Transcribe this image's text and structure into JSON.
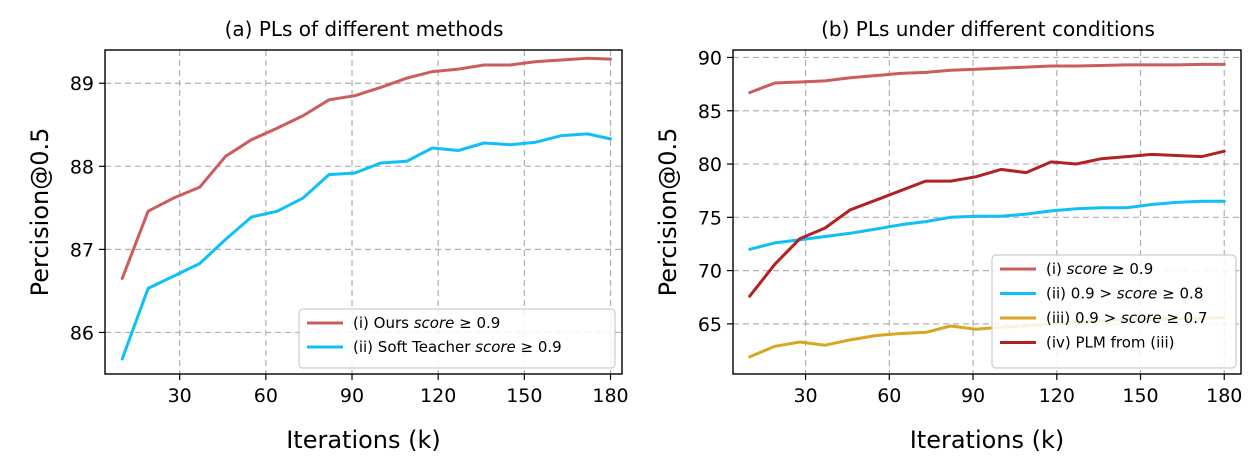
{
  "colors": {
    "ours": "#cd5c5c",
    "soft_teacher": "#0ebff8",
    "score09": "#cd5c5c",
    "score0908": "#0ebff8",
    "score0907": "#daa520",
    "plm": "#b22222"
  },
  "chart_data": [
    {
      "type": "line",
      "title": "(a) PLs of different methods",
      "xlabel": "Iterations (k)",
      "ylabel": "Percision@0.5",
      "xlim": [
        4,
        184
      ],
      "ylim": [
        85.5,
        89.4
      ],
      "xticks": [
        30,
        60,
        90,
        120,
        150,
        180
      ],
      "yticks": [
        86,
        87,
        88,
        89
      ],
      "grid": true,
      "legend_position": "lower-right",
      "x": [
        10,
        19,
        28,
        37,
        46,
        55,
        64,
        73,
        82,
        91,
        100,
        109,
        118,
        127,
        136,
        145,
        154,
        163,
        172,
        180
      ],
      "series": [
        {
          "name": "(i) Ours score ≥ 0.9",
          "legend_prefix": "(i) Ours",
          "legend_italic": "score",
          "legend_suffix": "≥ 0.9",
          "color_key": "ours",
          "values": [
            86.65,
            87.46,
            87.62,
            87.75,
            88.12,
            88.32,
            88.46,
            88.61,
            88.8,
            88.85,
            88.95,
            89.06,
            89.14,
            89.17,
            89.22,
            89.22,
            89.26,
            89.28,
            89.3,
            89.29
          ]
        },
        {
          "name": "(ii) Soft Teacher score ≥ 0.9",
          "legend_prefix": "(ii) Soft Teacher",
          "legend_italic": "score",
          "legend_suffix": "≥ 0.9",
          "color_key": "soft_teacher",
          "values": [
            85.68,
            86.53,
            86.68,
            86.83,
            87.12,
            87.39,
            87.46,
            87.62,
            87.9,
            87.92,
            88.04,
            88.06,
            88.22,
            88.19,
            88.28,
            88.26,
            88.29,
            88.37,
            88.39,
            88.33
          ]
        }
      ]
    },
    {
      "type": "line",
      "title": "(b) PLs under different conditions",
      "xlabel": "Iterations (k)",
      "ylabel": "Percision@0.5",
      "xlim": [
        4,
        186
      ],
      "ylim": [
        60.3,
        90.7
      ],
      "xticks": [
        30,
        60,
        90,
        120,
        150,
        180
      ],
      "yticks": [
        65,
        70,
        75,
        80,
        85,
        90
      ],
      "grid": true,
      "legend_position": "lower-right",
      "x": [
        10,
        19,
        28,
        37,
        46,
        55,
        64,
        73,
        82,
        91,
        100,
        109,
        118,
        127,
        136,
        145,
        154,
        163,
        172,
        180
      ],
      "series": [
        {
          "name": "(i) score ≥ 0.9",
          "legend_prefix": "(i)",
          "legend_italic": "score",
          "legend_suffix": "≥ 0.9",
          "color_key": "score09",
          "values": [
            86.7,
            87.6,
            87.7,
            87.8,
            88.1,
            88.3,
            88.5,
            88.6,
            88.8,
            88.9,
            89.0,
            89.1,
            89.2,
            89.2,
            89.25,
            89.3,
            89.3,
            89.3,
            89.35,
            89.35
          ]
        },
        {
          "name": "(ii) 0.9 > score ≥ 0.8",
          "legend_prefix": "(ii) 0.9 >",
          "legend_italic": "score",
          "legend_suffix": "≥ 0.8",
          "color_key": "score0908",
          "values": [
            72.0,
            72.6,
            72.9,
            73.2,
            73.5,
            73.9,
            74.3,
            74.6,
            75.0,
            75.1,
            75.1,
            75.3,
            75.6,
            75.8,
            75.9,
            75.9,
            76.2,
            76.4,
            76.5,
            76.5
          ]
        },
        {
          "name": "(iii) 0.9 > score ≥ 0.7",
          "legend_prefix": "(iii) 0.9 >",
          "legend_italic": "score",
          "legend_suffix": "≥ 0.7",
          "color_key": "score0907",
          "values": [
            61.9,
            62.9,
            63.3,
            63.0,
            63.5,
            63.9,
            64.1,
            64.2,
            64.8,
            64.5,
            64.7,
            64.8,
            65.0,
            65.2,
            65.3,
            65.4,
            65.4,
            65.5,
            65.5,
            65.6
          ]
        },
        {
          "name": "(iv) PLM from (iii)",
          "legend_prefix": "(iv) PLM from (iii)",
          "legend_italic": "",
          "legend_suffix": "",
          "color_key": "plm",
          "values": [
            67.6,
            70.6,
            73.0,
            74.0,
            75.7,
            76.6,
            77.5,
            78.4,
            78.4,
            78.8,
            79.5,
            79.2,
            80.2,
            80.0,
            80.5,
            80.7,
            80.9,
            80.8,
            80.7,
            81.2
          ]
        }
      ]
    }
  ]
}
